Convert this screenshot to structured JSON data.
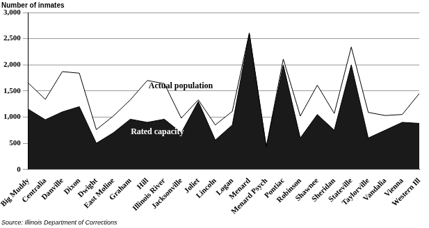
{
  "chart_data": {
    "type": "area",
    "title": "Number of inmates",
    "source": "Source: Illinois Department of Corrections",
    "categories": [
      "Big Muddy",
      "Centralia",
      "Danville",
      "Dixon",
      "Dwight",
      "East Moline",
      "Graham",
      "Hill",
      "Illinois River",
      "Jacksonville",
      "Joliet",
      "Lincoln",
      "Logan",
      "Menard",
      "Menard Psych",
      "Pontiac",
      "Robinson",
      "Shawnee",
      "Sheridan",
      "Stateville",
      "Taylorville",
      "Vandalia",
      "Vienna",
      "Western Ill"
    ],
    "series": [
      {
        "name": "Actual population",
        "color": "#ffffff",
        "values": [
          1650,
          1340,
          1870,
          1840,
          760,
          1020,
          1330,
          1700,
          1640,
          980,
          1330,
          850,
          1110,
          2610,
          430,
          2110,
          1020,
          1610,
          1070,
          2340,
          1090,
          1030,
          1050,
          1450
        ]
      },
      {
        "name": "Rated capacity",
        "color": "#1a1a1a",
        "values": [
          1150,
          950,
          1100,
          1200,
          500,
          700,
          960,
          900,
          960,
          700,
          1300,
          560,
          850,
          2600,
          430,
          2000,
          600,
          1050,
          750,
          2000,
          600,
          750,
          900,
          880
        ]
      }
    ],
    "ylim": [
      0,
      3000
    ],
    "yticks": [
      0,
      500,
      {
        "value": 1000,
        "label": "1,000"
      },
      {
        "value": 1500,
        "label": "1,500"
      },
      {
        "value": 2000,
        "label": "2,000"
      },
      {
        "value": 2500,
        "label": "2,500"
      },
      {
        "value": 3000,
        "label": "3,000"
      }
    ],
    "grid": true
  }
}
